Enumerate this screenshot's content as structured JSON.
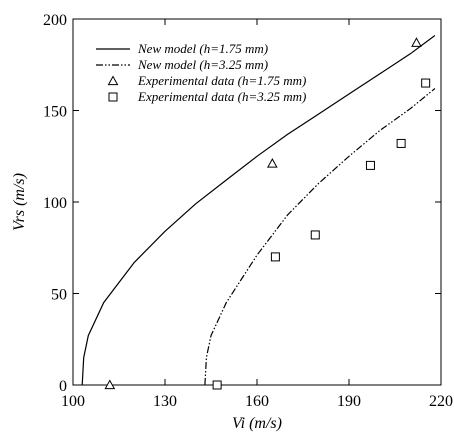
{
  "chart_data": {
    "type": "line",
    "title": "",
    "xlabel": "Vi (m/s)",
    "ylabel": "Vrs (m/s)",
    "xlim": [
      100,
      220
    ],
    "ylim": [
      0,
      200
    ],
    "xticks": [
      100,
      130,
      160,
      190,
      220
    ],
    "yticks": [
      0,
      50,
      100,
      150,
      200
    ],
    "grid": false,
    "legend_position": "top-left",
    "series": [
      {
        "name": "New model (h=1.75 mm)",
        "kind": "line",
        "style": "solid",
        "x": [
          103,
          103.5,
          105,
          110,
          120,
          130,
          140,
          150,
          160,
          170,
          180,
          190,
          200,
          210,
          218
        ],
        "y": [
          0,
          15,
          27,
          45,
          67,
          84,
          99,
          112,
          125,
          137,
          148,
          159,
          170,
          181,
          191
        ]
      },
      {
        "name": "New model (h=3.25 mm)",
        "kind": "line",
        "style": "dash-dot-dot",
        "x": [
          143,
          143.5,
          145,
          150,
          160,
          170,
          180,
          190,
          200,
          210,
          218
        ],
        "y": [
          0,
          15,
          27,
          45,
          71,
          93,
          110,
          125,
          139,
          151,
          162
        ]
      },
      {
        "name": "Experimental data (h=1.75 mm)",
        "kind": "scatter",
        "marker": "triangle",
        "x": [
          112,
          165,
          212
        ],
        "y": [
          0,
          121,
          187
        ]
      },
      {
        "name": "Experimental data (h=3.25 mm)",
        "kind": "scatter",
        "marker": "square",
        "x": [
          147,
          166,
          179,
          197,
          207,
          215
        ],
        "y": [
          0,
          70,
          82,
          120,
          132,
          165
        ]
      }
    ]
  }
}
